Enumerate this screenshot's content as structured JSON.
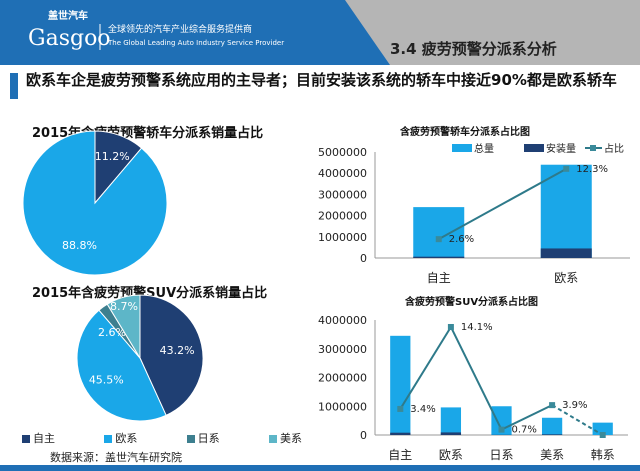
{
  "header": {
    "logo_cn": "盖世汽车",
    "logo_en": "Gasgoo",
    "tagline_cn": "全球领先的汽车产业综合服务提供商",
    "tagline_en": "The Global Leading Auto Industry Service Provider",
    "section": "3.4 疲劳预警分派系分析",
    "brand_color": "#1f6fb5"
  },
  "headline": "欧系车企是疲劳预警系统应用的主导者；目前安装该系统的轿车中接近90%都是欧系轿车",
  "legend": {
    "items": [
      "自主",
      "欧系",
      "日系",
      "美系"
    ]
  },
  "source": "数据来源：盖世汽车研究院",
  "chart_data": [
    {
      "type": "pie",
      "title": "2015年含疲劳预警轿车分派系销量占比",
      "labels": [
        "自主",
        "欧系"
      ],
      "values": [
        11.2,
        88.8
      ],
      "value_labels": [
        "11.2%",
        "88.8%"
      ],
      "colors": [
        "#1f3f73",
        "#1aa7e8"
      ]
    },
    {
      "type": "pie",
      "title": "2015年含疲劳预警SUV分派系销量占比",
      "labels": [
        "自主",
        "欧系",
        "日系",
        "美系"
      ],
      "values": [
        43.2,
        45.5,
        2.6,
        8.7
      ],
      "value_labels": [
        "43.2%",
        "45.5%",
        "2.6%",
        "8.7%"
      ],
      "colors": [
        "#1f3f73",
        "#1aa7e8",
        "#3d7f8f",
        "#5db6c8"
      ]
    },
    {
      "type": "bar",
      "title": "含疲劳预警轿车分派系占比图",
      "categories": [
        "自主",
        "欧系"
      ],
      "series": [
        {
          "name": "总量",
          "values": [
            2400000,
            4400000
          ]
        },
        {
          "name": "安装量",
          "values": [
            62000,
            450000
          ]
        },
        {
          "name": "占比",
          "values": [
            2.6,
            12.3
          ]
        }
      ],
      "ratio_labels": [
        "2.6%",
        "12.3%"
      ],
      "yticks": [
        "0",
        "1000000",
        "2000000",
        "3000000",
        "4000000",
        "5000000"
      ],
      "ylim": [
        0,
        5000000
      ]
    },
    {
      "type": "bar",
      "title": "含疲劳预警SUV分派系占比图",
      "categories": [
        "自主",
        "欧系",
        "日系",
        "美系",
        "韩系"
      ],
      "series": [
        {
          "name": "总量",
          "values": [
            3450000,
            960000,
            1000000,
            600000,
            430000
          ]
        },
        {
          "name": "安装量",
          "values": [
            80000,
            90000,
            7000,
            23000,
            0
          ]
        },
        {
          "name": "占比",
          "values": [
            3.4,
            14.1,
            0.7,
            3.9,
            0
          ]
        }
      ],
      "ratio_labels": [
        "3.4%",
        "14.1%",
        "0.7%",
        "3.9%",
        ""
      ],
      "yticks": [
        "0",
        "1000000",
        "2000000",
        "3000000",
        "4000000"
      ],
      "ylim": [
        0,
        4000000
      ]
    }
  ]
}
